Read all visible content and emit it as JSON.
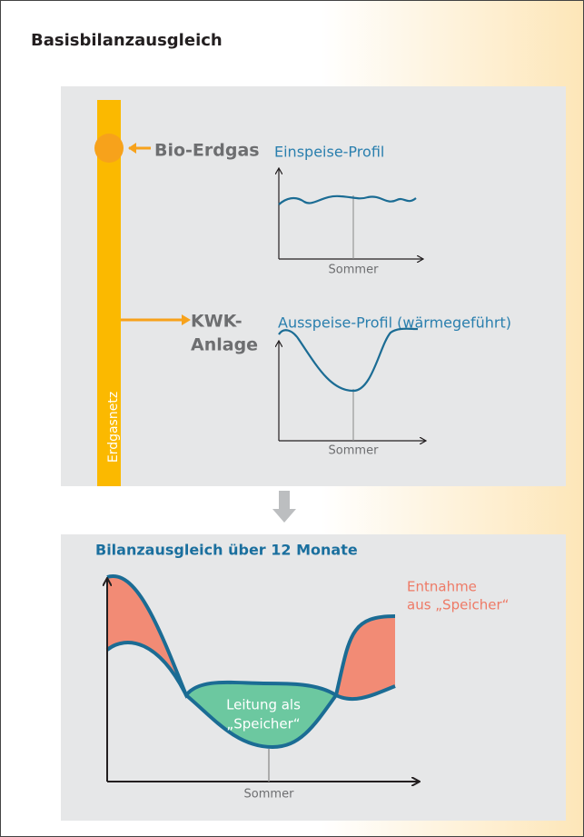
{
  "header": {
    "title": "Basisbilanzausgleich"
  },
  "supply_panel": {
    "pipe_label": "Erdgasnetz",
    "source": {
      "label": "Bio-Erdgas",
      "profile_title": "Einspeise-Profil",
      "x_label": "Sommer"
    },
    "sink": {
      "label_lines": [
        "KWK-",
        "Anlage"
      ],
      "profile_title": "Ausspeise-Profil (wärmegeführt)",
      "x_label": "Sommer"
    }
  },
  "balance_panel": {
    "title": "Bilanzausgleich über 12 Monate",
    "withdrawal_lines": [
      "Entnahme",
      "aus „Speicher“"
    ],
    "storage_lines": [
      "Leitung als",
      "„Speicher“"
    ],
    "x_label": "Sommer"
  }
}
